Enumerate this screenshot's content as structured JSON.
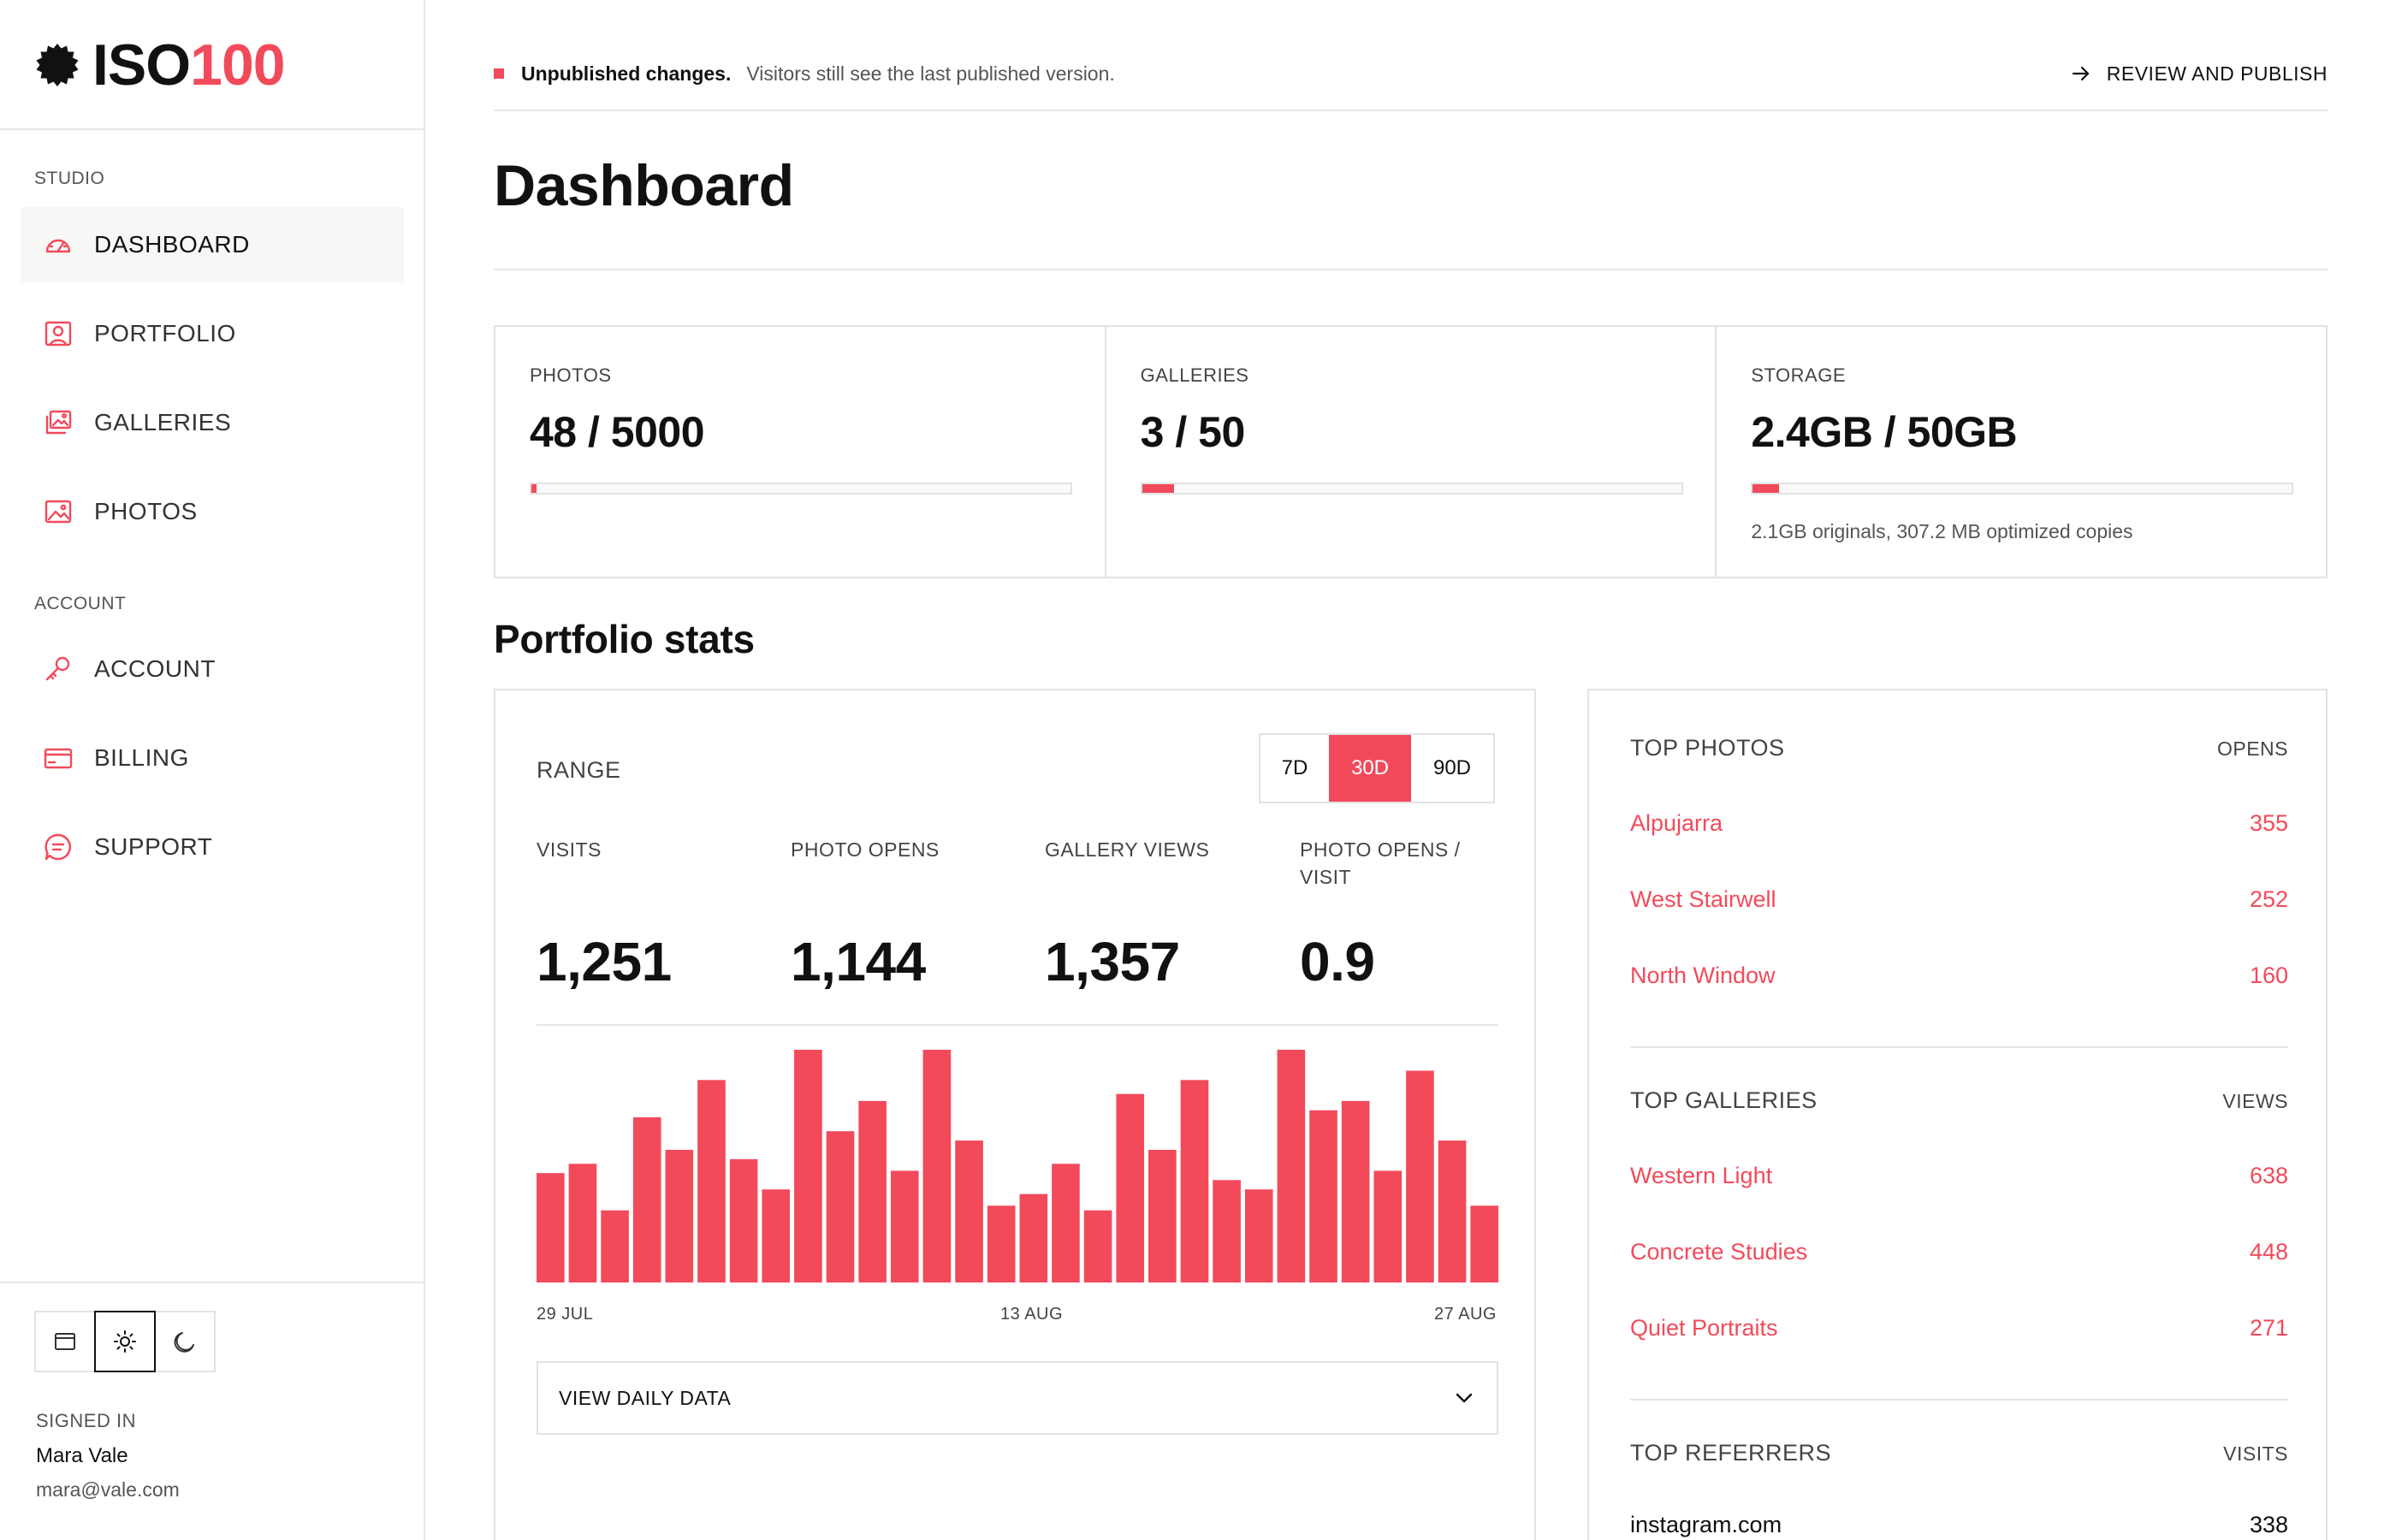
{
  "brand": {
    "prefix": "ISO",
    "accent": "100"
  },
  "sidebar": {
    "studio_label": "STUDIO",
    "account_label": "ACCOUNT",
    "items": [
      {
        "label": "DASHBOARD",
        "icon": "gauge-icon"
      },
      {
        "label": "PORTFOLIO",
        "icon": "portrait-icon"
      },
      {
        "label": "GALLERIES",
        "icon": "images-icon"
      },
      {
        "label": "PHOTOS",
        "icon": "image-icon"
      },
      {
        "label": "ACCOUNT",
        "icon": "key-icon"
      },
      {
        "label": "BILLING",
        "icon": "credit-card-icon"
      },
      {
        "label": "SUPPORT",
        "icon": "chat-icon"
      }
    ],
    "theme": {
      "selected": "light",
      "options": [
        "system",
        "light",
        "dark"
      ]
    },
    "signed_in_label": "SIGNED IN",
    "user_name": "Mara Vale",
    "user_email": "mara@vale.com"
  },
  "banner": {
    "strong": "Unpublished changes.",
    "muted": "Visitors still see the last published version.",
    "action": "REVIEW AND PUBLISH"
  },
  "page_title": "Dashboard",
  "usage": [
    {
      "label": "PHOTOS",
      "value": "48 / 5000",
      "fraction": 0.0096
    },
    {
      "label": "GALLERIES",
      "value": "3 / 50",
      "fraction": 0.06
    },
    {
      "label": "STORAGE",
      "value": "2.4GB / 50GB",
      "fraction": 0.048,
      "note": "2.1GB originals, 307.2 MB optimized copies"
    }
  ],
  "portfolio_stats_title": "Portfolio stats",
  "stats": {
    "range_label": "RANGE",
    "ranges": [
      "7D",
      "30D",
      "90D"
    ],
    "selected_range": "30D",
    "metrics": [
      {
        "label": "VISITS",
        "value": "1,251"
      },
      {
        "label": "PHOTO OPENS",
        "value": "1,144"
      },
      {
        "label": "GALLERY VIEWS",
        "value": "1,357"
      },
      {
        "label": "PHOTO OPENS / VISIT",
        "value": "0.9"
      }
    ],
    "daily_button": "VIEW DAILY DATA"
  },
  "chart_data": {
    "type": "bar",
    "x_tick_labels": [
      "29 JUL",
      "13 AUG",
      "27 AUG"
    ],
    "values": [
      47,
      51,
      31,
      71,
      57,
      87,
      53,
      40,
      100,
      65,
      78,
      48,
      100,
      61,
      33,
      38,
      51,
      31,
      81,
      57,
      87,
      44,
      40,
      100,
      74,
      78,
      48,
      91,
      61,
      33
    ],
    "ylim": [
      0,
      100
    ],
    "grid": false,
    "legend": "none",
    "color": "#f24a5b"
  },
  "top": {
    "photos": {
      "title": "TOP PHOTOS",
      "column": "OPENS",
      "rows": [
        {
          "name": "Alpujarra",
          "value": "355"
        },
        {
          "name": "West Stairwell",
          "value": "252"
        },
        {
          "name": "North Window",
          "value": "160"
        }
      ]
    },
    "galleries": {
      "title": "TOP GALLERIES",
      "column": "VIEWS",
      "rows": [
        {
          "name": "Western Light",
          "value": "638"
        },
        {
          "name": "Concrete Studies",
          "value": "448"
        },
        {
          "name": "Quiet Portraits",
          "value": "271"
        }
      ]
    },
    "referrers": {
      "title": "TOP REFERRERS",
      "column": "VISITS",
      "rows": [
        {
          "name": "instagram.com",
          "value": "338"
        }
      ]
    }
  },
  "colors": {
    "accent": "#f24a5b",
    "border": "#e2e2e2",
    "active_nav_bg": "#f7f7f6"
  }
}
